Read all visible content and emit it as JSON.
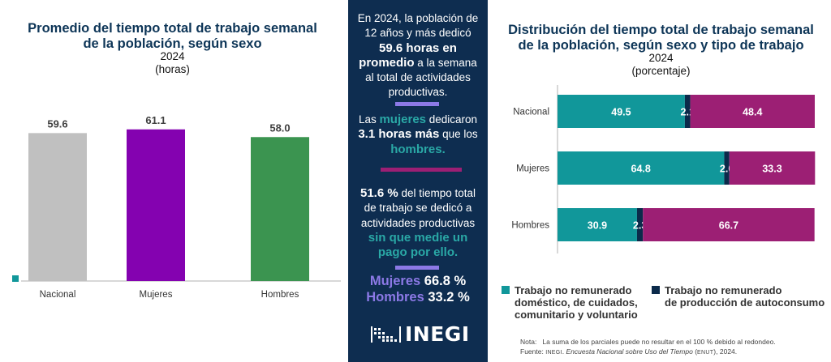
{
  "colors": {
    "navy": "#0e2d50",
    "title": "#0d3557",
    "teal": "#11979a",
    "dark_navy": "#0b2a4a",
    "magenta": "#9c1f74",
    "gray_bar": "#c0c0c0",
    "purple_bar": "#8402b0",
    "green_bar": "#3b9450",
    "lavender": "#8c79e6",
    "separator_magenta": "#9c1f74"
  },
  "left": {
    "title_line1": "Promedio del tiempo total de trabajo semanal",
    "title_line2": "de la población, según sexo",
    "year": "2024",
    "unit": "(horas)"
  },
  "middle": {
    "p1_a": "En 2024, la población de",
    "p1_b": "12 años y más dedicó",
    "p1_c_bold": "59.6 horas en",
    "p1_d_bold": "promedio",
    "p1_d_rest": " a la semana",
    "p1_e": "al total de actividades",
    "p1_f": "productivas.",
    "p2_a": "Las ",
    "p2_a_teal": "mujeres",
    "p2_a_rest": " dedicaron",
    "p2_b_bold": "3.1 horas más",
    "p2_b_rest": " que los",
    "p2_c_teal": "hombres.",
    "p3_a_bold": "51.6 %",
    "p3_a_rest": " del tiempo total",
    "p3_b": "de trabajo se dedicó a",
    "p3_c": "actividades productivas",
    "p3_d_teal": "sin que medie un",
    "p3_e_teal": "pago por ello.",
    "p4_a_lav": "Mujeres",
    "p4_a_val": " 66.8 %",
    "p4_b_lav": "Hombres",
    "p4_b_val": " 33.2 %",
    "logo_text": "INEGI"
  },
  "right": {
    "title_line1": "Distribución del tiempo total de trabajo semanal",
    "title_line2": "de la población, según sexo y tipo de trabajo",
    "year": "2024",
    "unit": "(porcentaje)",
    "legend": [
      {
        "line1": "Trabajo no remunerado",
        "line2": "doméstico, de cuidados,",
        "line3": "comunitario y voluntario",
        "color": "#11979a"
      },
      {
        "line1": "Trabajo no remunerado",
        "line2": "de producción de autoconsumo",
        "line3": "",
        "color": "#0b2a4a"
      }
    ],
    "note_label": "Nota:",
    "note_text": "La suma de los parciales puede no resultar en el 100 % debido al redondeo.",
    "source_label": "Fuente:",
    "source_org": "INEGI",
    "source_title": "Encuesta Nacional sobre Uso del Tiempo",
    "source_abbr": "ENUT",
    "source_year": "2024."
  },
  "chart_data": [
    {
      "type": "bar",
      "title": "Promedio del tiempo total de trabajo semanal de la población, según sexo",
      "subtitle": "2024 (horas)",
      "categories": [
        "Nacional",
        "Mujeres",
        "Hombres"
      ],
      "values": [
        59.6,
        61.1,
        58.0
      ],
      "value_labels": [
        "59.6",
        "61.1",
        "58.0"
      ],
      "colors": [
        "#c0c0c0",
        "#8402b0",
        "#3b9450"
      ],
      "xlabel": "",
      "ylabel": "",
      "ylim": [
        0,
        62
      ],
      "grid": false
    },
    {
      "type": "bar",
      "orientation": "horizontal-stacked",
      "title": "Distribución del tiempo total de trabajo semanal de la población, según sexo y tipo de trabajo",
      "subtitle": "2024 (porcentaje)",
      "categories": [
        "Nacional",
        "Mujeres",
        "Hombres"
      ],
      "series": [
        {
          "name": "Trabajo no remunerado doméstico, de cuidados, comunitario y voluntario",
          "color": "#11979a",
          "values": [
            49.5,
            64.8,
            30.9
          ],
          "labels": [
            "49.5",
            "64.8",
            "30.9"
          ]
        },
        {
          "name": "Trabajo no remunerado de producción de autoconsumo",
          "color": "#0b2a4a",
          "values": [
            2.1,
            2.0,
            2.3
          ],
          "labels": [
            "2.1",
            "2.0",
            "2.3"
          ]
        },
        {
          "name": "",
          "color": "#9c1f74",
          "values": [
            48.4,
            33.3,
            66.7
          ],
          "labels": [
            "48.4",
            "33.3",
            "66.7"
          ]
        }
      ],
      "xlim": [
        0,
        100
      ],
      "grid": false,
      "legend": "bottom"
    }
  ]
}
